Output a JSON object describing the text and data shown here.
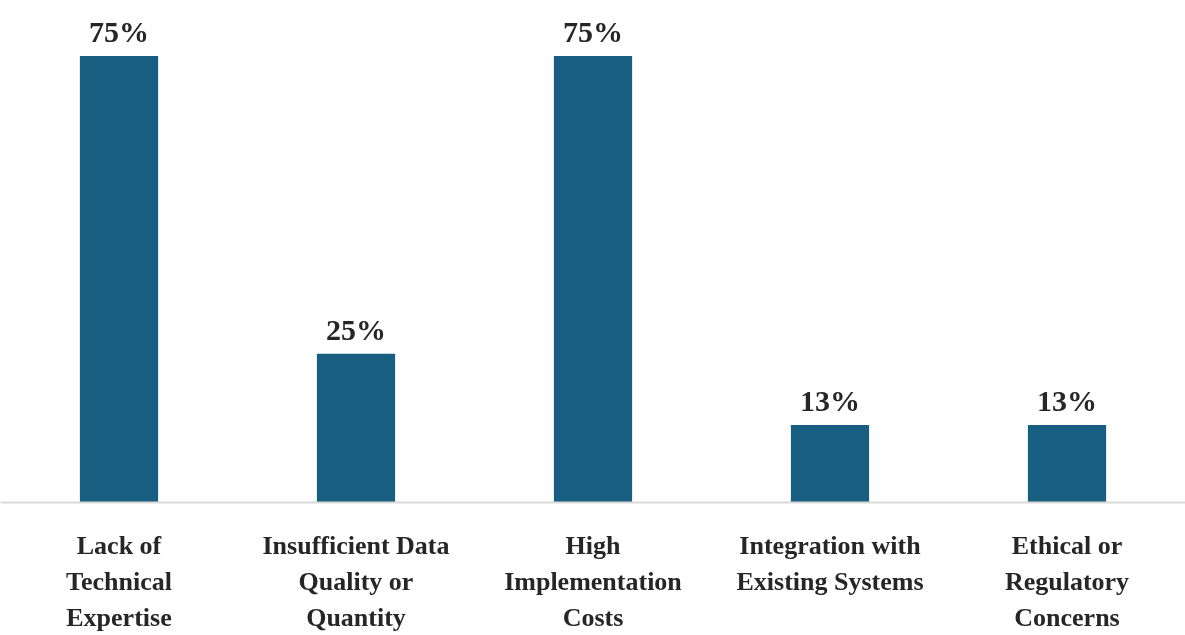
{
  "chart_data": {
    "type": "bar",
    "categories": [
      "Lack of\nTechnical\nExpertise",
      "Insufficient Data\nQuality or\nQuantity",
      "High\nImplementation\nCosts",
      "Integration with\nExisting Systems",
      "Ethical or\nRegulatory\nConcerns"
    ],
    "values": [
      75,
      25,
      75,
      13,
      13
    ],
    "value_labels": [
      "75%",
      "25%",
      "75%",
      "13%",
      "13%"
    ],
    "color": "#185e80"
  }
}
